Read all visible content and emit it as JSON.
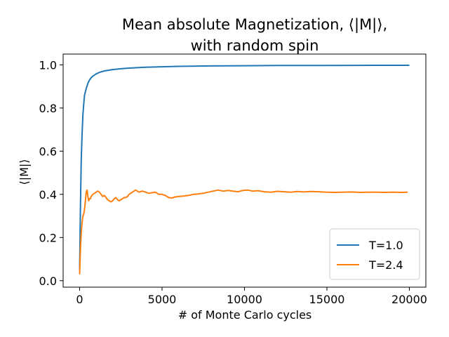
{
  "chart_data": {
    "type": "line",
    "title_lines": [
      "Mean absolute Magnetization, ⟨|M|⟩,",
      "with random spin"
    ],
    "xlabel": "# of Monte Carlo cycles",
    "ylabel": "⟨|M|⟩",
    "xlim": [
      -1000,
      21000
    ],
    "ylim": [
      -0.03,
      1.05
    ],
    "xticks": [
      0,
      5000,
      10000,
      15000,
      20000
    ],
    "xtick_labels": [
      "0",
      "5000",
      "10000",
      "15000",
      "20000"
    ],
    "yticks": [
      0.0,
      0.2,
      0.4,
      0.6,
      0.8,
      1.0
    ],
    "ytick_labels": [
      "0.0",
      "0.2",
      "0.4",
      "0.6",
      "0.8",
      "1.0"
    ],
    "grid": false,
    "legend_position": "lower-right",
    "series": [
      {
        "name": "T=1.0",
        "color": "#1f77b4",
        "x": [
          0,
          50,
          100,
          150,
          200,
          250,
          300,
          400,
          500,
          600,
          700,
          800,
          1000,
          1200,
          1500,
          2000,
          2500,
          3000,
          4000,
          5000,
          6000,
          8000,
          10000,
          12000,
          15000,
          18000,
          20000
        ],
        "y": [
          0.05,
          0.35,
          0.56,
          0.68,
          0.77,
          0.82,
          0.86,
          0.89,
          0.915,
          0.93,
          0.94,
          0.948,
          0.958,
          0.965,
          0.972,
          0.978,
          0.982,
          0.985,
          0.989,
          0.991,
          0.993,
          0.995,
          0.996,
          0.997,
          0.997,
          0.998,
          0.998
        ]
      },
      {
        "name": "T=2.4",
        "color": "#ff7f0e",
        "x": [
          0,
          50,
          100,
          150,
          200,
          250,
          300,
          350,
          400,
          450,
          500,
          550,
          600,
          650,
          700,
          800,
          900,
          1000,
          1100,
          1200,
          1300,
          1400,
          1500,
          1600,
          1700,
          1800,
          1900,
          2000,
          2100,
          2200,
          2300,
          2400,
          2500,
          2600,
          2700,
          2800,
          2900,
          3000,
          3200,
          3400,
          3600,
          3800,
          4000,
          4200,
          4400,
          4600,
          4800,
          5000,
          5200,
          5400,
          5600,
          5800,
          6000,
          6300,
          6600,
          6900,
          7200,
          7500,
          7800,
          8100,
          8400,
          8700,
          9000,
          9300,
          9600,
          9900,
          10200,
          10500,
          10800,
          11200,
          11600,
          12000,
          12400,
          12800,
          13200,
          13600,
          14000,
          14500,
          15000,
          15500,
          16000,
          16500,
          17000,
          17500,
          18000,
          18500,
          19000,
          19500,
          19900
        ],
        "y": [
          0.03,
          0.15,
          0.22,
          0.27,
          0.3,
          0.31,
          0.33,
          0.37,
          0.41,
          0.42,
          0.39,
          0.37,
          0.38,
          0.38,
          0.39,
          0.4,
          0.405,
          0.41,
          0.415,
          0.41,
          0.4,
          0.39,
          0.395,
          0.385,
          0.375,
          0.37,
          0.365,
          0.37,
          0.38,
          0.385,
          0.375,
          0.37,
          0.375,
          0.38,
          0.385,
          0.385,
          0.39,
          0.4,
          0.41,
          0.42,
          0.41,
          0.415,
          0.41,
          0.405,
          0.408,
          0.41,
          0.4,
          0.4,
          0.395,
          0.385,
          0.383,
          0.388,
          0.39,
          0.392,
          0.395,
          0.4,
          0.402,
          0.405,
          0.41,
          0.415,
          0.42,
          0.415,
          0.418,
          0.415,
          0.412,
          0.418,
          0.42,
          0.415,
          0.417,
          0.412,
          0.41,
          0.414,
          0.412,
          0.41,
          0.413,
          0.411,
          0.413,
          0.412,
          0.41,
          0.409,
          0.41,
          0.411,
          0.409,
          0.41,
          0.41,
          0.409,
          0.41,
          0.409,
          0.41
        ]
      }
    ]
  }
}
